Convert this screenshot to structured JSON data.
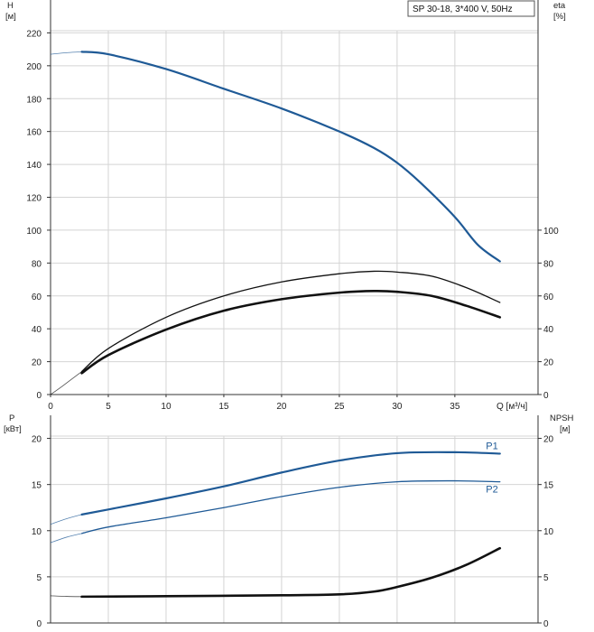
{
  "header": {
    "model_label": "SP 30-18, 3*400 V, 50Hz"
  },
  "colors": {
    "pump_curve_blue": "#1f5a96",
    "efficiency_black": "#111111",
    "grid": "#d4d4d4"
  },
  "chart_data": [
    {
      "type": "line",
      "name": "head-efficiency",
      "axes": {
        "left": {
          "label": "H",
          "unit": "[м]",
          "ylim": [
            0,
            240
          ],
          "ticks": [
            0,
            20,
            40,
            60,
            80,
            100,
            120,
            140,
            160,
            180,
            200,
            220
          ]
        },
        "right": {
          "label": "eta",
          "unit": "[%]",
          "ylim": [
            0,
            240
          ],
          "ticks": [
            0,
            20,
            40,
            60,
            80,
            100
          ]
        },
        "x": {
          "label": "Q [м³/ч]",
          "xlim": [
            0,
            42.2
          ],
          "ticks": [
            0,
            5,
            10,
            15,
            20,
            25,
            30,
            35
          ]
        }
      },
      "series": [
        {
          "name": "",
          "role": "head",
          "color": "#1f5a96",
          "extension": [
            [
              0,
              207
            ],
            [
              1.5,
              208
            ],
            [
              2.7,
              208.5
            ]
          ],
          "points": [
            [
              2.7,
              208.5
            ],
            [
              5,
              207
            ],
            [
              10,
              198
            ],
            [
              15,
              186
            ],
            [
              20,
              174
            ],
            [
              25,
              160
            ],
            [
              28,
              150
            ],
            [
              30,
              141
            ],
            [
              32,
              129
            ],
            [
              35,
              108
            ],
            [
              37,
              91
            ],
            [
              38.9,
              81
            ]
          ]
        },
        {
          "name": "",
          "role": "efficiency-thin",
          "color": "#111111",
          "extension": [
            [
              0,
              0
            ],
            [
              1,
              5
            ],
            [
              2.7,
              14
            ]
          ],
          "points": [
            [
              2.7,
              14
            ],
            [
              5,
              28
            ],
            [
              10,
              47
            ],
            [
              15,
              60
            ],
            [
              20,
              68.5
            ],
            [
              25,
              73.5
            ],
            [
              28,
              75
            ],
            [
              30,
              74.5
            ],
            [
              33,
              72
            ],
            [
              36,
              65
            ],
            [
              38.9,
              56
            ]
          ]
        },
        {
          "name": "",
          "role": "efficiency-thick",
          "color": "#111111",
          "points": [
            [
              2.7,
              13
            ],
            [
              5,
              24
            ],
            [
              10,
              39.5
            ],
            [
              15,
              51
            ],
            [
              20,
              58
            ],
            [
              25,
              62
            ],
            [
              28,
              63
            ],
            [
              30,
              62.5
            ],
            [
              33,
              60
            ],
            [
              36,
              54
            ],
            [
              38.9,
              47
            ]
          ]
        }
      ]
    },
    {
      "type": "line",
      "name": "power-npsh",
      "axes": {
        "left": {
          "label": "P",
          "unit": "[кВт]",
          "ylim": [
            0,
            22.5
          ],
          "ticks": [
            0,
            5,
            10,
            15,
            20
          ]
        },
        "right": {
          "label": "NPSH",
          "unit": "[м]",
          "ylim": [
            0,
            22.5
          ],
          "ticks": [
            0,
            5,
            10,
            15,
            20
          ]
        },
        "x": {
          "xlim": [
            0,
            42.2
          ],
          "ticks": [
            0,
            5,
            10,
            15,
            20,
            25,
            30,
            35
          ]
        }
      },
      "series": [
        {
          "name": "P1",
          "color": "#1f5a96",
          "extension": [
            [
              0,
              10.7
            ],
            [
              1.4,
              11.3
            ],
            [
              2.7,
              11.75
            ]
          ],
          "points": [
            [
              2.7,
              11.75
            ],
            [
              5,
              12.3
            ],
            [
              10,
              13.5
            ],
            [
              15,
              14.8
            ],
            [
              20,
              16.3
            ],
            [
              25,
              17.6
            ],
            [
              30,
              18.4
            ],
            [
              35,
              18.5
            ],
            [
              38.9,
              18.35
            ]
          ]
        },
        {
          "name": "P2",
          "color": "#1f5a96",
          "extension": [
            [
              0,
              8.7
            ],
            [
              1.4,
              9.3
            ],
            [
              2.7,
              9.7
            ]
          ],
          "points": [
            [
              2.7,
              9.7
            ],
            [
              5,
              10.4
            ],
            [
              10,
              11.4
            ],
            [
              15,
              12.5
            ],
            [
              20,
              13.7
            ],
            [
              25,
              14.7
            ],
            [
              30,
              15.3
            ],
            [
              35,
              15.4
            ],
            [
              38.9,
              15.3
            ]
          ]
        },
        {
          "name": "",
          "role": "npsh",
          "color": "#111111",
          "extension": [
            [
              0,
              2.95
            ],
            [
              1.4,
              2.88
            ],
            [
              2.7,
              2.85
            ]
          ],
          "points": [
            [
              2.7,
              2.85
            ],
            [
              10,
              2.9
            ],
            [
              20,
              3.0
            ],
            [
              25,
              3.1
            ],
            [
              28,
              3.4
            ],
            [
              30,
              3.9
            ],
            [
              33,
              4.9
            ],
            [
              36,
              6.3
            ],
            [
              38.9,
              8.1
            ]
          ]
        }
      ]
    }
  ]
}
